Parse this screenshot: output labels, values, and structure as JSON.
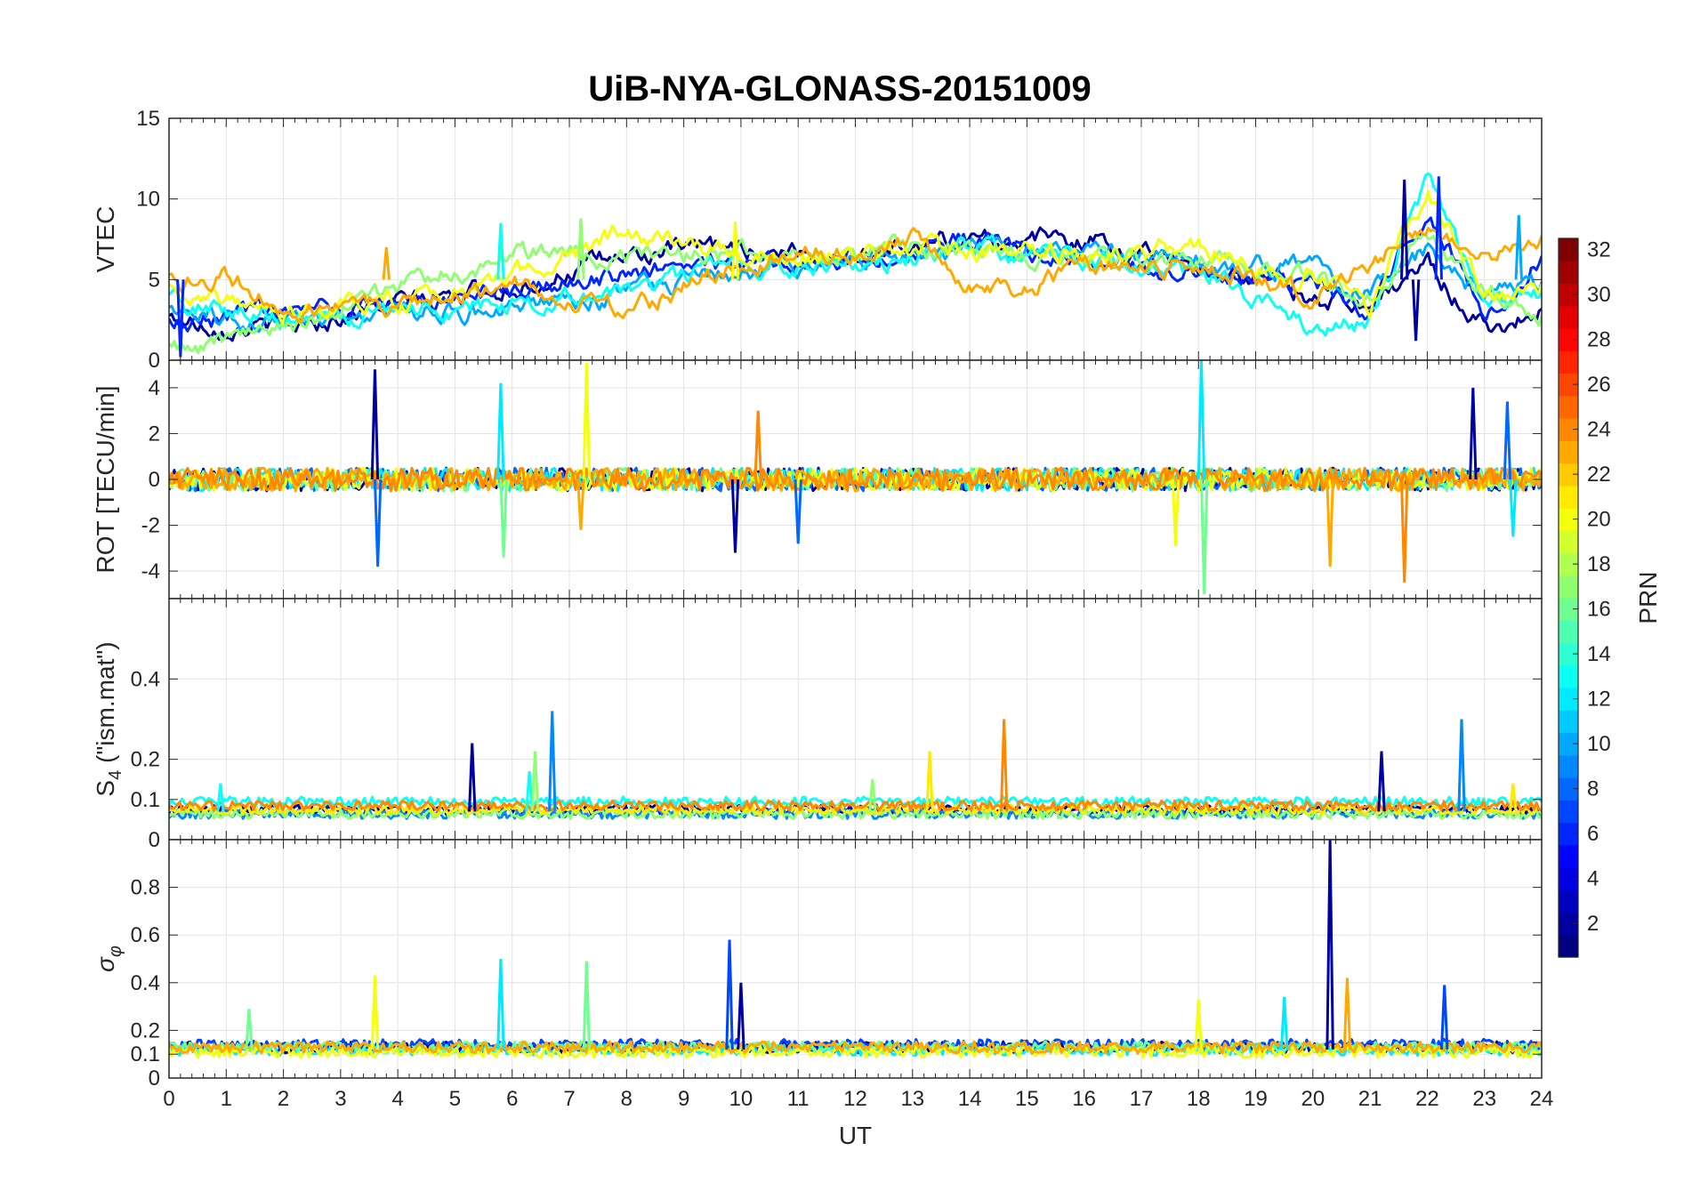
{
  "chart_data": [
    {
      "type": "line",
      "panel": "vtec",
      "title": "UiB-NYA-GLONASS-20151009",
      "ylabel": "VTEC",
      "xlim": [
        0,
        24
      ],
      "ylim": [
        0,
        15
      ],
      "yticks": [
        0,
        5,
        10,
        15
      ],
      "grid": true,
      "baseline": 5.0,
      "noise": 0.9,
      "spikes": [
        {
          "x": 21.6,
          "y": 11.2
        },
        {
          "x": 22.2,
          "y": 11.4
        },
        {
          "x": 23.6,
          "y": 9.0
        },
        {
          "x": 5.8,
          "y": 8.5
        },
        {
          "x": 7.2,
          "y": 8.8
        },
        {
          "x": 9.9,
          "y": 8.6
        },
        {
          "x": 3.8,
          "y": 7.0
        },
        {
          "x": 21.8,
          "y": 1.2
        },
        {
          "x": 0.2,
          "y": 0.2
        }
      ],
      "series": [
        {
          "prn": 2,
          "values": [
            [
              0,
              2.5
            ],
            [
              2,
              2.0
            ],
            [
              4,
              3.5
            ],
            [
              6,
              4.5
            ],
            [
              8,
              6.5
            ],
            [
              10,
              7.0
            ],
            [
              12,
              6.5
            ],
            [
              14,
              7.5
            ],
            [
              16,
              7.5
            ],
            [
              18,
              6.0
            ],
            [
              20,
              4.0
            ],
            [
              21,
              3.5
            ],
            [
              22,
              6.0
            ],
            [
              23,
              2.0
            ],
            [
              24,
              3.0
            ]
          ]
        },
        {
          "prn": 6,
          "values": [
            [
              0,
              2.2
            ],
            [
              2,
              3.0
            ],
            [
              4,
              3.5
            ],
            [
              6,
              4.0
            ],
            [
              8,
              5.5
            ],
            [
              10,
              6.0
            ],
            [
              12,
              6.5
            ],
            [
              14,
              7.5
            ],
            [
              16,
              6.0
            ],
            [
              18,
              5.5
            ],
            [
              20,
              5.0
            ],
            [
              21,
              3.0
            ],
            [
              22,
              9.5
            ],
            [
              23,
              3.0
            ],
            [
              24,
              6.5
            ]
          ]
        },
        {
          "prn": 10,
          "values": [
            [
              0,
              2.8
            ],
            [
              2,
              2.3
            ],
            [
              4,
              3.0
            ],
            [
              6,
              3.0
            ],
            [
              8,
              4.0
            ],
            [
              10,
              5.5
            ],
            [
              12,
              6.0
            ],
            [
              14,
              7.0
            ],
            [
              16,
              6.5
            ],
            [
              18,
              6.5
            ],
            [
              20,
              5.5
            ],
            [
              21,
              4.0
            ],
            [
              22,
              7.0
            ],
            [
              23,
              4.0
            ],
            [
              24,
              5.0
            ]
          ]
        },
        {
          "prn": 13,
          "values": [
            [
              0,
              3.5
            ],
            [
              2,
              2.5
            ],
            [
              4,
              3.0
            ],
            [
              6,
              3.5
            ],
            [
              8,
              4.0
            ],
            [
              10,
              6.0
            ],
            [
              12,
              6.0
            ],
            [
              14,
              7.0
            ],
            [
              16,
              6.0
            ],
            [
              18,
              5.5
            ],
            [
              20,
              2.0
            ],
            [
              21,
              2.5
            ],
            [
              22,
              11.0
            ],
            [
              23,
              3.5
            ],
            [
              24,
              4.0
            ]
          ]
        },
        {
          "prn": 17,
          "values": [
            [
              0,
              0.4
            ],
            [
              2,
              2.0
            ],
            [
              4,
              4.5
            ],
            [
              6,
              6.5
            ],
            [
              8,
              6.5
            ],
            [
              10,
              6.5
            ],
            [
              12,
              7.0
            ],
            [
              14,
              7.0
            ],
            [
              16,
              6.5
            ],
            [
              18,
              6.0
            ],
            [
              20,
              5.0
            ],
            [
              21,
              3.5
            ],
            [
              22,
              8.0
            ],
            [
              23,
              4.0
            ],
            [
              24,
              3.0
            ]
          ]
        },
        {
          "prn": 20,
          "values": [
            [
              0,
              4.0
            ],
            [
              2,
              3.0
            ],
            [
              4,
              3.5
            ],
            [
              6,
              5.0
            ],
            [
              8,
              8.0
            ],
            [
              10,
              6.5
            ],
            [
              12,
              6.5
            ],
            [
              14,
              7.0
            ],
            [
              16,
              6.5
            ],
            [
              18,
              7.0
            ],
            [
              20,
              5.5
            ],
            [
              21,
              3.5
            ],
            [
              22,
              10.5
            ],
            [
              23,
              4.0
            ],
            [
              24,
              4.5
            ]
          ]
        },
        {
          "prn": 23,
          "values": [
            [
              0,
              4.5
            ],
            [
              1,
              5.5
            ],
            [
              2,
              3.0
            ],
            [
              4,
              3.5
            ],
            [
              6,
              5.0
            ],
            [
              8,
              3.0
            ],
            [
              10,
              6.0
            ],
            [
              12,
              7.0
            ],
            [
              13,
              7.5
            ],
            [
              14,
              5.0
            ],
            [
              15,
              4.5
            ],
            [
              16,
              5.5
            ],
            [
              18,
              6.0
            ],
            [
              20,
              4.0
            ],
            [
              22,
              8.0
            ],
            [
              23,
              6.5
            ],
            [
              24,
              7.5
            ]
          ]
        }
      ]
    },
    {
      "type": "line",
      "panel": "rot",
      "ylabel": "ROT [TECU/min]",
      "xlim": [
        0,
        24
      ],
      "ylim": [
        -5.2,
        5.2
      ],
      "yticks": [
        -4,
        -2,
        0,
        2,
        4
      ],
      "grid": true,
      "baseline": 0,
      "noise": 0.5,
      "spikes": [
        {
          "x": 3.6,
          "y": 4.8
        },
        {
          "x": 3.65,
          "y": -3.8
        },
        {
          "x": 5.8,
          "y": 4.2
        },
        {
          "x": 5.85,
          "y": -3.4
        },
        {
          "x": 7.3,
          "y": 5.1
        },
        {
          "x": 7.2,
          "y": -2.2
        },
        {
          "x": 10.3,
          "y": 3.0
        },
        {
          "x": 9.9,
          "y": -3.2
        },
        {
          "x": 11.0,
          "y": -2.8
        },
        {
          "x": 18.05,
          "y": 5.2
        },
        {
          "x": 18.1,
          "y": -5.0
        },
        {
          "x": 17.6,
          "y": -2.9
        },
        {
          "x": 20.3,
          "y": -3.8
        },
        {
          "x": 21.6,
          "y": -4.5
        },
        {
          "x": 22.8,
          "y": 4.0
        },
        {
          "x": 23.4,
          "y": 3.4
        },
        {
          "x": 23.5,
          "y": -2.5
        }
      ],
      "series": [
        {
          "prn": 2,
          "values": [
            [
              0,
              0
            ],
            [
              24,
              0
            ]
          ]
        },
        {
          "prn": 8,
          "values": [
            [
              0,
              0
            ],
            [
              24,
              0
            ]
          ]
        },
        {
          "prn": 12,
          "values": [
            [
              0,
              0
            ],
            [
              24,
              0
            ]
          ]
        },
        {
          "prn": 16,
          "values": [
            [
              0,
              0
            ],
            [
              24,
              0
            ]
          ]
        },
        {
          "prn": 20,
          "values": [
            [
              0,
              0
            ],
            [
              24,
              0
            ]
          ]
        },
        {
          "prn": 23,
          "values": [
            [
              0,
              0
            ],
            [
              24,
              0
            ]
          ]
        },
        {
          "prn": 24,
          "values": [
            [
              0,
              0
            ],
            [
              24,
              0
            ]
          ]
        }
      ]
    },
    {
      "type": "line",
      "panel": "s4",
      "ylabel": "S4 (\"ism.mat\")",
      "xlim": [
        0,
        24
      ],
      "ylim": [
        0,
        0.6
      ],
      "yticks": [
        0,
        0.1,
        0.2,
        0.4
      ],
      "grid": true,
      "baseline": 0.07,
      "noise": 0.03,
      "spikes": [
        {
          "x": 5.3,
          "y": 0.24
        },
        {
          "x": 6.7,
          "y": 0.32
        },
        {
          "x": 6.3,
          "y": 0.17
        },
        {
          "x": 6.4,
          "y": 0.22
        },
        {
          "x": 13.3,
          "y": 0.22
        },
        {
          "x": 14.6,
          "y": 0.3
        },
        {
          "x": 21.2,
          "y": 0.22
        },
        {
          "x": 22.6,
          "y": 0.3
        },
        {
          "x": 0.9,
          "y": 0.14
        },
        {
          "x": 12.3,
          "y": 0.15
        },
        {
          "x": 23.5,
          "y": 0.14
        }
      ],
      "series": [
        {
          "prn": 2,
          "values": [
            [
              0,
              0.07
            ],
            [
              24,
              0.07
            ]
          ]
        },
        {
          "prn": 9,
          "values": [
            [
              0,
              0.06
            ],
            [
              24,
              0.06
            ]
          ]
        },
        {
          "prn": 13,
          "values": [
            [
              0,
              0.09
            ],
            [
              24,
              0.09
            ]
          ]
        },
        {
          "prn": 17,
          "values": [
            [
              0,
              0.06
            ],
            [
              24,
              0.06
            ]
          ]
        },
        {
          "prn": 21,
          "values": [
            [
              0,
              0.07
            ],
            [
              24,
              0.07
            ]
          ]
        },
        {
          "prn": 24,
          "values": [
            [
              0,
              0.08
            ],
            [
              24,
              0.08
            ]
          ]
        }
      ]
    },
    {
      "type": "line",
      "panel": "sigma",
      "ylabel": "σφ",
      "xlabel": "UT",
      "xlim": [
        0,
        24
      ],
      "ylim": [
        0,
        1
      ],
      "yticks": [
        0,
        0.1,
        0.2,
        0.4,
        0.6,
        0.8
      ],
      "xticks": [
        0,
        1,
        2,
        3,
        4,
        5,
        6,
        7,
        8,
        9,
        10,
        11,
        12,
        13,
        14,
        15,
        16,
        17,
        18,
        19,
        20,
        21,
        22,
        23,
        24
      ],
      "grid": true,
      "baseline": 0.12,
      "noise": 0.06,
      "spikes": [
        {
          "x": 20.3,
          "y": 1.0
        },
        {
          "x": 9.8,
          "y": 0.58
        },
        {
          "x": 5.8,
          "y": 0.5
        },
        {
          "x": 7.3,
          "y": 0.49
        },
        {
          "x": 3.6,
          "y": 0.43
        },
        {
          "x": 20.6,
          "y": 0.42
        },
        {
          "x": 10.0,
          "y": 0.4
        },
        {
          "x": 22.3,
          "y": 0.39
        },
        {
          "x": 19.5,
          "y": 0.34
        },
        {
          "x": 1.4,
          "y": 0.29
        },
        {
          "x": 18.0,
          "y": 0.33
        }
      ],
      "series": [
        {
          "prn": 2,
          "values": [
            [
              0,
              0.12
            ],
            [
              24,
              0.12
            ]
          ]
        },
        {
          "prn": 7,
          "values": [
            [
              0,
              0.13
            ],
            [
              24,
              0.13
            ]
          ]
        },
        {
          "prn": 12,
          "values": [
            [
              0,
              0.11
            ],
            [
              24,
              0.11
            ]
          ]
        },
        {
          "prn": 16,
          "values": [
            [
              0,
              0.12
            ],
            [
              24,
              0.12
            ]
          ]
        },
        {
          "prn": 20,
          "values": [
            [
              0,
              0.1
            ],
            [
              24,
              0.1
            ]
          ]
        },
        {
          "prn": 23,
          "values": [
            [
              0,
              0.12
            ],
            [
              24,
              0.12
            ]
          ]
        }
      ]
    }
  ],
  "colorbar": {
    "label": "PRN",
    "range": [
      1,
      32
    ],
    "ticks": [
      2,
      4,
      6,
      8,
      10,
      12,
      14,
      16,
      18,
      20,
      22,
      24,
      26,
      28,
      30,
      32
    ],
    "colormap": "jet"
  }
}
